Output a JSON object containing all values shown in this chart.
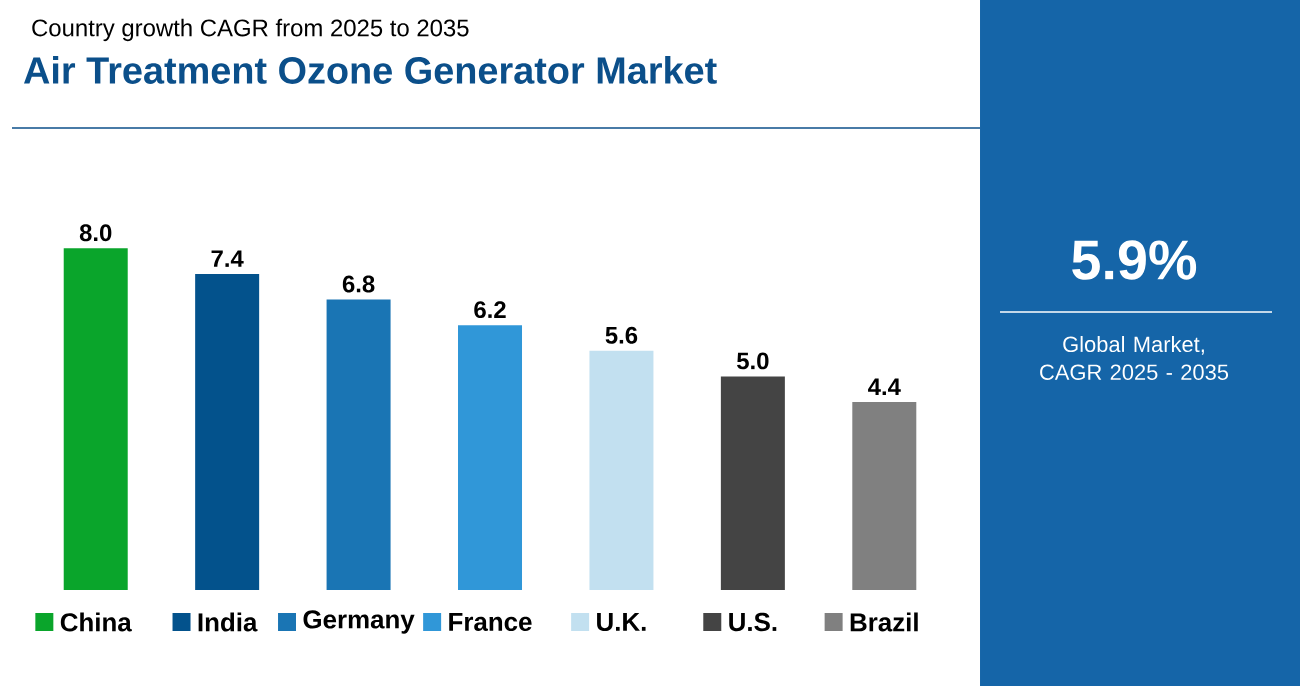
{
  "chart_data": {
    "type": "bar",
    "title": "Air Treatment Ozone Generator Market",
    "subtitle": "Country growth CAGR from 2025 to 2035",
    "categories": [
      "China",
      "India",
      "Germany",
      "France",
      "U.K.",
      "U.S.",
      "Brazil"
    ],
    "values": [
      8.0,
      7.4,
      6.8,
      6.2,
      5.6,
      5.0,
      4.4
    ],
    "value_labels": [
      "8.0",
      "7.4",
      "6.8",
      "6.2",
      "5.6",
      "5.0",
      "4.4"
    ],
    "colors": [
      "#0aa52b",
      "#03528c",
      "#1a75b4",
      "#3097d8",
      "#c2e0f0",
      "#444444",
      "#808080"
    ],
    "annotations": [
      "5.9%",
      "Global Market, CAGR 2025 - 2035"
    ]
  }
}
